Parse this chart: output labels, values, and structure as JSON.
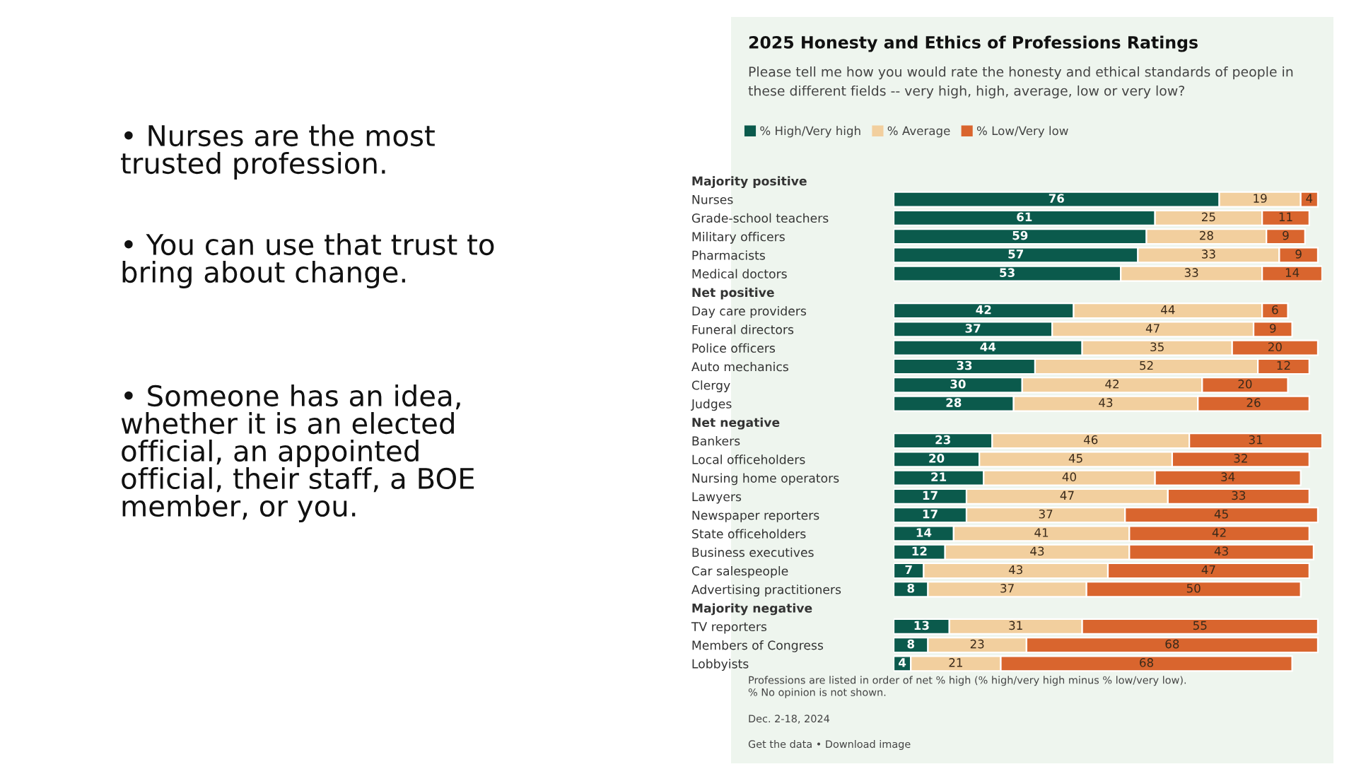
{
  "chart_data": {
    "type": "bar",
    "orientation": "horizontal",
    "stacked": true,
    "data_labels": true,
    "tick_labels": "y",
    "legend": "top left",
    "grid": false,
    "title": "2025 Honesty and Ethics of Professions Ratings",
    "subtitle": "Please tell me how you would rate the honesty and ethical standards of people in these different fields -- very high, high, average, low or very low?",
    "categories": [
      "Majority positive",
      "Nurses",
      "Grade-school teachers",
      "Military officers",
      "Pharmacists",
      "Medical doctors",
      "Net positive",
      "Day care providers",
      "Funeral directors",
      "Police officers",
      "Auto mechanics",
      "Clergy",
      "Judges",
      "Net negative",
      "Bankers",
      "Local officeholders",
      "Nursing home operators",
      "Lawyers",
      "Newspaper reporters",
      "State officeholders",
      "Business executives",
      "Car salespeople",
      "Advertising practitioners",
      "Majority negative",
      "TV reporters",
      "Members of Congress",
      "Lobbyists"
    ],
    "series": [
      {
        "name": "% High/Very high",
        "color": "#0b5a4c",
        "values": [
          null,
          76,
          61,
          59,
          57,
          53,
          null,
          42,
          37,
          44,
          33,
          30,
          28,
          null,
          23,
          20,
          21,
          17,
          17,
          14,
          12,
          7,
          8,
          null,
          13,
          8,
          4
        ]
      },
      {
        "name": "% Average",
        "color": "#f2cf9e",
        "values": [
          null,
          19,
          25,
          28,
          33,
          33,
          null,
          44,
          47,
          35,
          52,
          42,
          43,
          null,
          46,
          45,
          40,
          47,
          37,
          41,
          43,
          43,
          37,
          null,
          31,
          23,
          21
        ]
      },
      {
        "name": "% Low/Very low",
        "color": "#d9652e",
        "values": [
          null,
          4,
          11,
          9,
          9,
          14,
          null,
          6,
          9,
          20,
          12,
          20,
          26,
          null,
          31,
          32,
          34,
          33,
          45,
          42,
          43,
          47,
          50,
          null,
          55,
          68,
          68
        ]
      }
    ],
    "annotations": [
      "• Nurses are the most trusted profession.",
      "• You can use that trust to bring about change.",
      "• Someone has an idea, whether it is an elected official, an appointed official, their staff, a BOE member, or you.",
      "Professions are listed in order of net % high (% high/very high minus % low/very low).\n% No opinion is not shown.",
      "Dec. 2-18, 2024",
      "Get the data • Download image"
    ]
  }
}
